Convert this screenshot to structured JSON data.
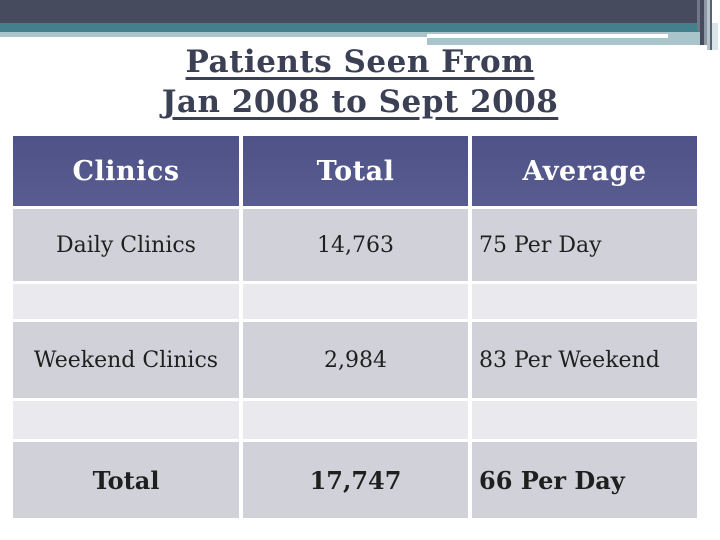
{
  "slide": {
    "title_line1": "Patients Seen From",
    "title_line2": "Jan 2008 to Sept 2008"
  },
  "table": {
    "columns": [
      "Clinics",
      "Total",
      "Average"
    ],
    "rows": [
      {
        "clinic": "Daily Clinics",
        "total": "14,763",
        "average": "75 Per Day"
      },
      {
        "clinic": "Weekend Clinics",
        "total": "2,984",
        "average": "83 Per Weekend"
      },
      {
        "clinic": "Total",
        "total": "17,747",
        "average": "66 Per Day"
      }
    ]
  },
  "colors": {
    "header_background": "#53578b",
    "header_text": "#ffffff",
    "row_background": "#d1d2d9",
    "spacer_background": "#e9e9ee",
    "title_text": "#3b4055",
    "body_text": "#1f1f1f",
    "banner_dark": "#474b5e",
    "banner_teal": "#44808b",
    "banner_light": "#aac4cb"
  }
}
